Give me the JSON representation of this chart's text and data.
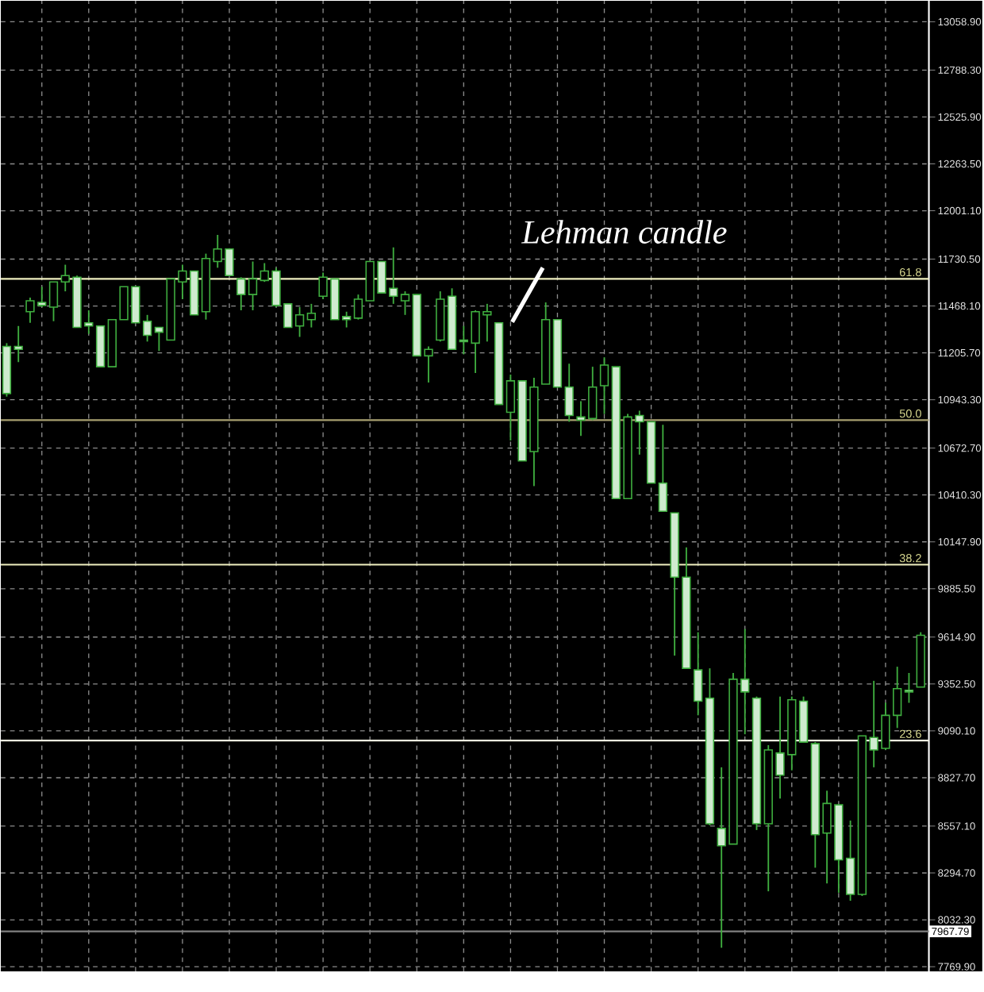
{
  "chart_data": {
    "type": "candlestick",
    "categories": [
      null,
      null,
      null,
      null,
      null,
      null,
      null,
      null,
      null,
      null,
      null,
      null,
      null,
      null,
      null,
      null,
      null,
      null,
      null,
      null,
      null,
      null,
      null,
      null,
      null,
      null,
      null,
      null,
      null,
      null,
      null,
      null,
      null,
      null,
      null,
      null,
      null,
      null,
      null,
      null,
      null,
      null,
      null,
      null,
      null,
      null,
      null,
      null,
      null,
      null,
      null,
      null,
      null,
      null,
      null,
      null,
      null,
      null,
      null,
      null,
      null,
      null,
      null,
      null,
      null,
      null,
      null,
      null,
      null,
      null,
      null,
      null,
      null,
      null,
      null,
      null,
      null,
      null,
      null
    ],
    "ohlc": [
      [
        11242,
        11260,
        10961,
        10978
      ],
      [
        11242,
        11356,
        11154,
        11225
      ],
      [
        11436,
        11515,
        11374,
        11497
      ],
      [
        11488,
        11576,
        11462,
        11471
      ],
      [
        11462,
        11603,
        11383,
        11603
      ],
      [
        11603,
        11699,
        11550,
        11638
      ],
      [
        11629,
        11638,
        11348,
        11348
      ],
      [
        11374,
        11444,
        11312,
        11356
      ],
      [
        11356,
        11356,
        11128,
        11128
      ],
      [
        11128,
        11392,
        11128,
        11392
      ],
      [
        11392,
        11576,
        11392,
        11576
      ],
      [
        11576,
        11576,
        11374,
        11374
      ],
      [
        11383,
        11418,
        11269,
        11304
      ],
      [
        11348,
        11348,
        11216,
        11321
      ],
      [
        11277,
        11620,
        11277,
        11620
      ],
      [
        11603,
        11699,
        11506,
        11664
      ],
      [
        11664,
        11664,
        11418,
        11418
      ],
      [
        11436,
        11761,
        11392,
        11734
      ],
      [
        11717,
        11866,
        11682,
        11787
      ],
      [
        11787,
        11787,
        11638,
        11638
      ],
      [
        11620,
        11629,
        11444,
        11532
      ],
      [
        11532,
        11717,
        11444,
        11620
      ],
      [
        11611,
        11708,
        11603,
        11664
      ],
      [
        11664,
        11682,
        11462,
        11471
      ],
      [
        11480,
        11480,
        11348,
        11348
      ],
      [
        11356,
        11462,
        11295,
        11418
      ],
      [
        11392,
        11480,
        11348,
        11427
      ],
      [
        11523,
        11655,
        11506,
        11629
      ],
      [
        11620,
        11620,
        11392,
        11392
      ],
      [
        11409,
        11436,
        11348,
        11392
      ],
      [
        11400,
        11532,
        11392,
        11506
      ],
      [
        11497,
        11717,
        11497,
        11717
      ],
      [
        11717,
        11717,
        11541,
        11541
      ],
      [
        11567,
        11796,
        11480,
        11523
      ],
      [
        11497,
        11550,
        11418,
        11532
      ],
      [
        11532,
        11532,
        11189,
        11189
      ],
      [
        11189,
        11242,
        11040,
        11225
      ],
      [
        11277,
        11550,
        11269,
        11506
      ],
      [
        11523,
        11567,
        11225,
        11225
      ],
      [
        11277,
        11356,
        11198,
        11269
      ],
      [
        11260,
        11444,
        11093,
        11436
      ],
      [
        11418,
        11480,
        11269,
        11436
      ],
      [
        11374,
        11374,
        10917,
        10917
      ],
      [
        10873,
        11084,
        10715,
        11049
      ],
      [
        11049,
        11049,
        10601,
        10601
      ],
      [
        10653,
        11066,
        10460,
        11014
      ],
      [
        11031,
        11488,
        11031,
        11392
      ],
      [
        11392,
        11392,
        11014,
        11014
      ],
      [
        11014,
        11145,
        10820,
        10855
      ],
      [
        10847,
        10935,
        10741,
        10829
      ],
      [
        10838,
        11128,
        10829,
        11014
      ],
      [
        11022,
        11181,
        10864,
        11137
      ],
      [
        11128,
        11128,
        10390,
        10390
      ],
      [
        10390,
        10864,
        10390,
        10847
      ],
      [
        10855,
        10882,
        10636,
        10820
      ],
      [
        10820,
        10820,
        10477,
        10477
      ],
      [
        10477,
        10803,
        10319,
        10319
      ],
      [
        10310,
        10310,
        9511,
        9950
      ],
      [
        9950,
        10117,
        9440,
        9440
      ],
      [
        9431,
        9642,
        9177,
        9256
      ],
      [
        9273,
        9440,
        8561,
        8570
      ],
      [
        8544,
        8886,
        7876,
        8447
      ],
      [
        8456,
        9414,
        8456,
        9379
      ],
      [
        9379,
        9660,
        9071,
        9308
      ],
      [
        9273,
        9282,
        8535,
        8570
      ],
      [
        8570,
        9010,
        8192,
        8983
      ],
      [
        8966,
        9282,
        8711,
        8842
      ],
      [
        8957,
        9282,
        8869,
        9264
      ],
      [
        9256,
        9282,
        9027,
        9027
      ],
      [
        9018,
        9027,
        8324,
        8509
      ],
      [
        8518,
        8755,
        8236,
        8684
      ],
      [
        8676,
        8676,
        8184,
        8368
      ],
      [
        8377,
        8588,
        8139,
        8175
      ],
      [
        8175,
        9062,
        8166,
        9062
      ],
      [
        9053,
        9370,
        8886,
        8983
      ],
      [
        8992,
        9247,
        8983,
        9177
      ],
      [
        9177,
        9449,
        9106,
        9326
      ],
      [
        9317,
        9414,
        9247,
        9308
      ],
      [
        9335,
        9642,
        9335,
        9625
      ]
    ],
    "color": "#3fae3f",
    "ylim": [
      7744,
      13176
    ],
    "yticks": [
      {
        "value": 13058.9,
        "label": "13058.90"
      },
      {
        "value": 12788.3,
        "label": "12788.30"
      },
      {
        "value": 12525.9,
        "label": "12525.90"
      },
      {
        "value": 12263.5,
        "label": "12263.50"
      },
      {
        "value": 12001.1,
        "label": "12001.10"
      },
      {
        "value": 11730.5,
        "label": "11730.50"
      },
      {
        "value": 11468.1,
        "label": "11468.10"
      },
      {
        "value": 11205.7,
        "label": "11205.70"
      },
      {
        "value": 10943.3,
        "label": "10943.30"
      },
      {
        "value": 10672.7,
        "label": "10672.70"
      },
      {
        "value": 10410.3,
        "label": "10410.30"
      },
      {
        "value": 10147.9,
        "label": "10147.90"
      },
      {
        "value": 9885.5,
        "label": "9885.50"
      },
      {
        "value": 9614.9,
        "label": "9614.90"
      },
      {
        "value": 9352.5,
        "label": "9352.50"
      },
      {
        "value": 9090.1,
        "label": "9090.10"
      },
      {
        "value": 8827.7,
        "label": "8827.70"
      },
      {
        "value": 8557.1,
        "label": "8557.10"
      },
      {
        "value": 8294.7,
        "label": "8294.70"
      },
      {
        "value": 8032.3,
        "label": "8032.30"
      },
      {
        "value": 7769.9,
        "label": "7769.90"
      }
    ],
    "grid": true,
    "tick_labels": "y",
    "ref_lines": [
      {
        "axis": "y",
        "value": 11620,
        "color": "#f0f0c0"
      },
      {
        "axis": "y",
        "value": 10829,
        "color": "#a8a070"
      },
      {
        "axis": "y",
        "value": 10020,
        "color": "#f0f0c0"
      },
      {
        "axis": "y",
        "value": 9036,
        "color": "#f0f0e0"
      },
      {
        "axis": "y",
        "value": 7967.79,
        "label": "7967.79",
        "color": "#808080"
      }
    ],
    "annotations": [
      "Lehman candle",
      {
        "text": "61.8",
        "y": 11620
      },
      {
        "text": "50.0",
        "y": 10829
      },
      {
        "text": "38.2",
        "y": 10020
      },
      {
        "text": "23.6",
        "y": 9036
      }
    ]
  }
}
